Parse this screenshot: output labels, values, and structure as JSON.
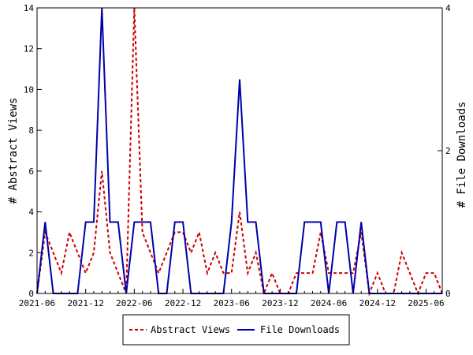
{
  "chart_data": {
    "type": "line",
    "title": "",
    "xlabel": "",
    "ylabel_left": "# Abstract Views",
    "ylabel_right": "# File Downloads",
    "ylim_left": [
      0,
      14
    ],
    "ylim_right": [
      0,
      4
    ],
    "left_ticks": [
      "0",
      "2",
      "4",
      "6",
      "8",
      "10",
      "12",
      "14"
    ],
    "right_ticks": [
      "0",
      "2",
      "4"
    ],
    "x_tick_labels": [
      "2021-06",
      "2021-12",
      "2022-06",
      "2022-12",
      "2023-06",
      "2023-12",
      "2024-06",
      "2024-12",
      "2025-06"
    ],
    "x_start": "2021-06",
    "grid": false,
    "legend_position": "bottom",
    "colors": {
      "abstract_views": "#cc0000",
      "file_downloads": "#0000aa"
    },
    "series": [
      {
        "name": "Abstract Views",
        "axis": "left",
        "style": "dashed",
        "values": [
          0,
          3,
          2,
          1,
          3,
          2,
          1,
          2,
          6,
          2,
          1,
          0,
          14,
          3,
          2,
          1,
          2,
          3,
          3,
          2,
          3,
          1,
          2,
          1,
          1,
          4,
          1,
          2,
          0,
          1,
          0,
          0,
          1,
          1,
          1,
          3,
          1,
          1,
          1,
          1,
          3,
          0,
          1,
          0,
          0,
          2,
          1,
          0,
          1,
          1,
          0
        ]
      },
      {
        "name": "File Downloads",
        "axis": "right",
        "style": "solid",
        "values": [
          0,
          1,
          0,
          0,
          0,
          0,
          1,
          1,
          4,
          1,
          1,
          0,
          1,
          1,
          1,
          0,
          0,
          1,
          1,
          0,
          0,
          0,
          0,
          0,
          1,
          3,
          1,
          1,
          0,
          0,
          0,
          0,
          0,
          1,
          1,
          1,
          0,
          1,
          1,
          0,
          1,
          0,
          0,
          0,
          0,
          0,
          0,
          0,
          0,
          0,
          0
        ]
      }
    ]
  }
}
